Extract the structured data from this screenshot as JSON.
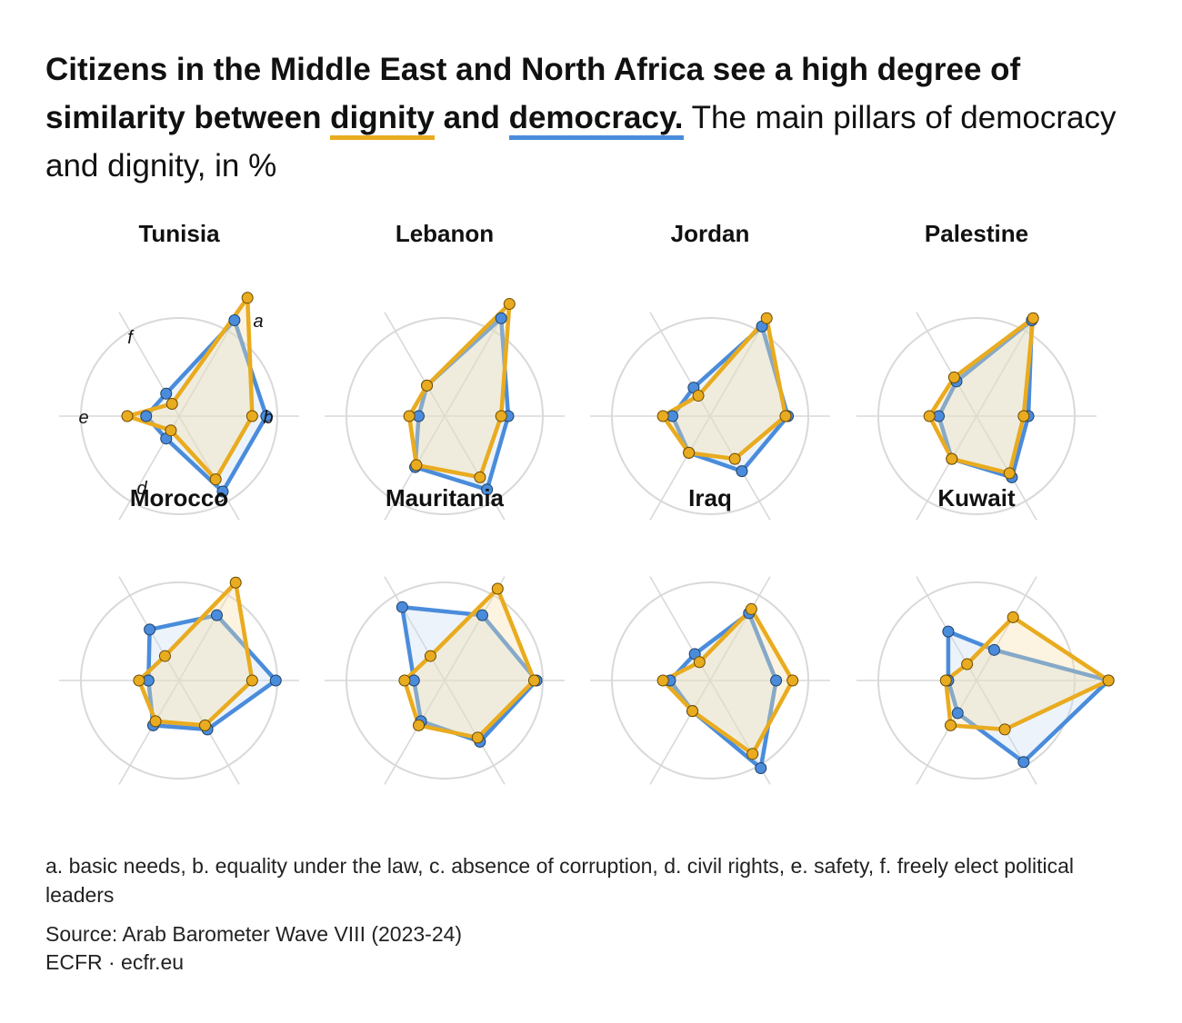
{
  "headline": {
    "part1": "Citizens in the Middle East and North Africa see a high degree of similarity between ",
    "dignity": "dignity",
    "and": " and ",
    "democracy": "democracy.",
    "rest": " The main pillars of democracy and dignity, in %"
  },
  "colors": {
    "dignity": "#E9AB1F",
    "democracy": "#4A8CDB",
    "grid": "#D9D9D9"
  },
  "axis_letters": [
    "a",
    "b",
    "c",
    "d",
    "e",
    "f"
  ],
  "footnote": "a. basic needs, b. equality under the law, c. absence of corruption, d. civil rights, e. safety, f. freely elect political leaders",
  "source": "Source: Arab Barometer Wave VIII (2023-24)",
  "credit": "ECFR · ecfr.eu",
  "chart_data": {
    "type": "radar",
    "axes": [
      "a",
      "b",
      "c",
      "d",
      "e",
      "f"
    ],
    "rlim": [
      0,
      50
    ],
    "series_names": [
      "dignity",
      "democracy"
    ],
    "charts": [
      {
        "title": "Tunisia",
        "dignity": [
          58,
          31,
          31,
          7,
          22,
          6
        ],
        "democracy": [
          47,
          37,
          37,
          11,
          14,
          11
        ]
      },
      {
        "title": "Lebanon",
        "dignity": [
          55,
          24,
          30,
          24,
          15,
          15
        ],
        "democracy": [
          48,
          27,
          36,
          25,
          11,
          15
        ]
      },
      {
        "title": "Jordan",
        "dignity": [
          48,
          32,
          21,
          18,
          20,
          10
        ],
        "democracy": [
          44,
          33,
          27,
          18,
          16,
          14
        ]
      },
      {
        "title": "Palestine",
        "dignity": [
          48,
          20,
          28,
          21,
          20,
          19
        ],
        "democracy": [
          47,
          22,
          30,
          21,
          16,
          17
        ]
      },
      {
        "title": "Morocco",
        "dignity": [
          48,
          31,
          22,
          20,
          17,
          12
        ],
        "democracy": [
          32,
          41,
          24,
          22,
          13,
          25
        ]
      },
      {
        "title": "Mauritania",
        "dignity": [
          45,
          38,
          28,
          22,
          17,
          12
        ],
        "democracy": [
          32,
          39,
          30,
          20,
          13,
          36
        ]
      },
      {
        "title": "Iraq",
        "dignity": [
          35,
          35,
          36,
          15,
          20,
          9
        ],
        "democracy": [
          33,
          28,
          43,
          15,
          17,
          13
        ]
      },
      {
        "title": "Kuwait",
        "dignity": [
          31,
          56,
          24,
          22,
          13,
          8
        ],
        "democracy": [
          15,
          56,
          40,
          16,
          12,
          24
        ]
      }
    ]
  }
}
